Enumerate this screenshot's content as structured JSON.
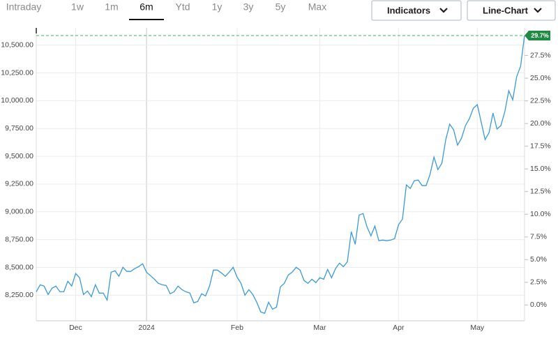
{
  "tabs": [
    "Intraday",
    "1w",
    "1m",
    "6m",
    "Ytd",
    "1y",
    "3y",
    "5y",
    "Max"
  ],
  "active_tab": "6m",
  "buttons": [
    "Indicators",
    "Line-Chart"
  ],
  "chart_data": {
    "type": "line",
    "color": "#3a9ad9",
    "categories": [
      null,
      null,
      null,
      null,
      null,
      null,
      null,
      null,
      null,
      null,
      "Dec",
      null,
      null,
      null,
      null,
      null,
      null,
      null,
      null,
      null,
      null,
      null,
      null,
      null,
      null,
      null,
      null,
      null,
      "2024",
      null,
      null,
      null,
      null,
      null,
      null,
      null,
      null,
      null,
      null,
      null,
      null,
      null,
      null,
      null,
      null,
      null,
      null,
      null,
      null,
      null,
      null,
      "Feb",
      null,
      null,
      null,
      null,
      null,
      null,
      null,
      null,
      null,
      null,
      null,
      null,
      null,
      null,
      null,
      null,
      null,
      null,
      null,
      null,
      "Mar",
      null,
      null,
      null,
      null,
      null,
      null,
      null,
      null,
      null,
      null,
      null,
      null,
      null,
      null,
      null,
      null,
      null,
      null,
      null,
      "Apr",
      null,
      null,
      null,
      null,
      null,
      null,
      null,
      null,
      null,
      null,
      null,
      null,
      null,
      null,
      null,
      null,
      null,
      null,
      null,
      "May",
      null,
      null,
      null,
      null,
      null,
      null,
      null,
      null,
      null,
      null,
      null,
      null
    ],
    "values": [
      8281,
      8344,
      8332,
      8256,
      8313,
      8332,
      8281,
      8281,
      8376,
      8332,
      8445,
      8407,
      8256,
      8288,
      8237,
      8344,
      8269,
      8269,
      8206,
      8457,
      8470,
      8420,
      8501,
      8464,
      8464,
      8489,
      8507,
      8533,
      8457,
      8426,
      8394,
      8357,
      8344,
      8338,
      8263,
      8281,
      8332,
      8300,
      8281,
      8269,
      8181,
      8193,
      8263,
      8244,
      8332,
      8476,
      8476,
      8451,
      8420,
      8457,
      8501,
      8413,
      8357,
      8250,
      8300,
      8256,
      8187,
      8099,
      8087,
      8187,
      8124,
      8143,
      8325,
      8357,
      8432,
      8457,
      8501,
      8476,
      8382,
      8357,
      8394,
      8363,
      8407,
      8394,
      8482,
      8407,
      8489,
      8539,
      8507,
      8551,
      8821,
      8708,
      8972,
      8985,
      8865,
      8784,
      8872,
      8740,
      8746,
      8740,
      8746,
      8759,
      8884,
      8935,
      9242,
      9211,
      9280,
      9286,
      9236,
      9236,
      9336,
      9493,
      9380,
      9437,
      9650,
      9789,
      9738,
      9600,
      9663,
      9776,
      9839,
      9933,
      9964,
      9807,
      9650,
      9713,
      9889,
      9745,
      9776,
      9902,
      10090,
      10008,
      10216,
      10310,
      10586
    ],
    "last_label": "29.7%",
    "ylim": [
      8020,
      10655
    ],
    "yticks": [
      {
        "value": 8250,
        "label": "8,250.00"
      },
      {
        "value": 8500,
        "label": "8,500.00"
      },
      {
        "value": 8750,
        "label": "8,750.00"
      },
      {
        "value": 9000,
        "label": "9,000.00"
      },
      {
        "value": 9250,
        "label": "9,250.00"
      },
      {
        "value": 9500,
        "label": "9,500.00"
      },
      {
        "value": 9750,
        "label": "9,750.00"
      },
      {
        "value": 10000,
        "label": "10,000.00"
      },
      {
        "value": 10250,
        "label": "10,250.00"
      },
      {
        "value": 10500,
        "label": "10,500.00"
      }
    ],
    "y2lim": [
      -1.74,
      30.54
    ],
    "y2ticks": [
      {
        "value": 0,
        "label": "0.0%"
      },
      {
        "value": 2.5,
        "label": "2.5%"
      },
      {
        "value": 5,
        "label": "5.0%"
      },
      {
        "value": 7.5,
        "label": "7.5%"
      },
      {
        "value": 10,
        "label": "10.0%"
      },
      {
        "value": 12.5,
        "label": "12.5%"
      },
      {
        "value": 15,
        "label": "15.0%"
      },
      {
        "value": 17.5,
        "label": "17.5%"
      },
      {
        "value": 20,
        "label": "20.0%"
      },
      {
        "value": 22.5,
        "label": "22.5%"
      },
      {
        "value": 25,
        "label": "25.0%"
      },
      {
        "value": 27.5,
        "label": "27.5%"
      }
    ],
    "grid": true
  }
}
